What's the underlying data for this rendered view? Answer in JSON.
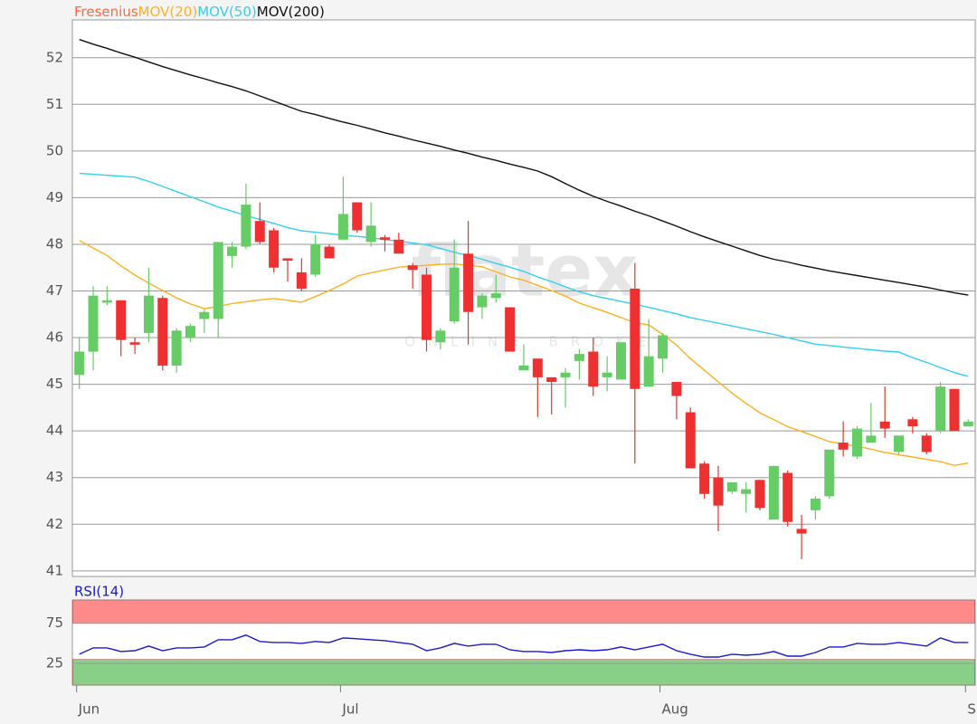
{
  "chart_data": [
    {
      "type": "candlestick",
      "watermark": "flatex",
      "watermark_sub": "ONLINE BROKER",
      "ylim": [
        40.88,
        52.81
      ],
      "yticks": [
        41,
        42,
        43,
        44,
        45,
        46,
        47,
        48,
        49,
        50,
        51,
        52
      ],
      "grid": true,
      "series": [
        {
          "name": "Fresenius",
          "type": "candlestick",
          "color": "#ff6a3d",
          "up_color": "#66cc66",
          "down_color": "#ee3030",
          "open": [
            45.2,
            45.7,
            46.75,
            46.8,
            45.9,
            46.1,
            46.85,
            45.4,
            46.0,
            46.4,
            46.4,
            47.75,
            47.95,
            48.5,
            48.3,
            47.7,
            47.4,
            47.35,
            47.95,
            48.1,
            48.9,
            48.05,
            48.15,
            48.1,
            47.55,
            47.35,
            45.9,
            46.35,
            47.8,
            46.65,
            46.85,
            46.65,
            45.3,
            45.55,
            45.15,
            45.15,
            45.5,
            45.7,
            45.15,
            45.1,
            47.05,
            44.95,
            45.55,
            45.05,
            44.4,
            43.3,
            43.0,
            42.7,
            42.65,
            42.95,
            42.1,
            43.1,
            41.9,
            42.3,
            42.6,
            43.75,
            43.45,
            43.75,
            44.2,
            43.55,
            44.25,
            43.9,
            44.0,
            44.9,
            44.1
          ],
          "high": [
            46.0,
            47.1,
            47.1,
            46.8,
            46.0,
            47.5,
            46.9,
            46.2,
            46.3,
            46.6,
            48.05,
            48.05,
            49.3,
            48.9,
            48.35,
            47.7,
            47.7,
            48.2,
            48.0,
            49.45,
            48.9,
            48.9,
            48.2,
            48.25,
            47.6,
            47.5,
            46.2,
            48.1,
            48.5,
            46.95,
            47.35,
            46.65,
            45.85,
            45.55,
            45.15,
            45.35,
            45.75,
            46.0,
            45.6,
            45.9,
            47.6,
            46.4,
            46.1,
            45.05,
            44.5,
            43.35,
            43.25,
            42.9,
            42.9,
            42.95,
            43.25,
            43.15,
            42.2,
            42.6,
            43.6,
            44.2,
            44.1,
            44.6,
            44.95,
            43.9,
            44.3,
            43.95,
            45.05,
            44.9,
            44.25
          ],
          "low": [
            44.9,
            45.3,
            46.7,
            45.6,
            45.65,
            45.9,
            45.3,
            45.25,
            45.9,
            46.1,
            46.0,
            47.5,
            47.9,
            48.0,
            47.4,
            47.2,
            47.0,
            47.3,
            47.7,
            48.1,
            48.25,
            47.95,
            47.85,
            47.8,
            47.05,
            45.7,
            45.75,
            46.3,
            45.85,
            46.4,
            46.75,
            45.7,
            45.3,
            44.3,
            44.35,
            44.5,
            45.1,
            44.75,
            44.85,
            45.1,
            43.3,
            44.95,
            45.25,
            44.25,
            43.2,
            42.55,
            41.85,
            42.65,
            42.25,
            42.3,
            42.1,
            41.95,
            41.25,
            42.1,
            42.55,
            43.45,
            43.4,
            43.75,
            43.85,
            43.5,
            43.95,
            43.5,
            43.95,
            44.0,
            44.1
          ],
          "close": [
            45.7,
            46.9,
            46.8,
            45.95,
            45.85,
            46.9,
            45.4,
            46.15,
            46.25,
            46.55,
            48.05,
            47.95,
            48.85,
            48.05,
            47.5,
            47.65,
            47.05,
            48.0,
            47.7,
            48.65,
            48.3,
            48.4,
            48.1,
            47.8,
            47.45,
            45.95,
            46.15,
            47.5,
            46.55,
            46.9,
            46.95,
            45.7,
            45.4,
            45.15,
            45.05,
            45.25,
            45.65,
            44.95,
            45.25,
            45.9,
            44.9,
            45.6,
            46.05,
            44.75,
            43.2,
            42.65,
            42.4,
            42.9,
            42.75,
            42.35,
            43.25,
            42.05,
            41.8,
            42.55,
            43.6,
            43.6,
            44.05,
            43.9,
            44.05,
            43.9,
            44.1,
            43.55,
            44.95,
            44.0,
            44.2
          ]
        },
        {
          "name": "MOV(20)",
          "type": "line",
          "color": "#ffb020",
          "values": [
            48.08,
            47.92,
            47.76,
            47.54,
            47.34,
            47.17,
            47.01,
            46.85,
            46.72,
            46.62,
            46.67,
            46.73,
            46.77,
            46.81,
            46.84,
            46.8,
            46.76,
            46.88,
            47.01,
            47.15,
            47.32,
            47.39,
            47.45,
            47.51,
            47.53,
            47.55,
            47.57,
            47.58,
            47.55,
            47.52,
            47.41,
            47.3,
            47.23,
            47.12,
            47.01,
            46.89,
            46.74,
            46.64,
            46.54,
            46.43,
            46.32,
            46.27,
            46.07,
            45.84,
            45.55,
            45.3,
            45.05,
            44.81,
            44.59,
            44.39,
            44.24,
            44.09,
            43.99,
            43.88,
            43.77,
            43.72,
            43.67,
            43.61,
            43.54,
            43.49,
            43.44,
            43.39,
            43.34,
            43.26,
            43.31
          ]
        },
        {
          "name": "MOV(50)",
          "type": "line",
          "color": "#33d0f0",
          "values": [
            49.52,
            49.5,
            49.48,
            49.46,
            49.44,
            49.35,
            49.24,
            49.13,
            49.02,
            48.91,
            48.8,
            48.71,
            48.62,
            48.53,
            48.45,
            48.36,
            48.29,
            48.26,
            48.23,
            48.19,
            48.17,
            48.14,
            48.1,
            48.07,
            48.03,
            47.99,
            47.91,
            47.83,
            47.76,
            47.68,
            47.59,
            47.51,
            47.42,
            47.3,
            47.2,
            47.09,
            46.98,
            46.9,
            46.84,
            46.78,
            46.71,
            46.65,
            46.58,
            46.51,
            46.43,
            46.37,
            46.31,
            46.25,
            46.19,
            46.13,
            46.07,
            46.0,
            45.93,
            45.86,
            45.83,
            45.8,
            45.77,
            45.74,
            45.71,
            45.69,
            45.57,
            45.47,
            45.36,
            45.25,
            45.17
          ]
        },
        {
          "name": "MOV(200)",
          "type": "line",
          "color": "#111111",
          "values": [
            52.39,
            52.29,
            52.2,
            52.1,
            52.01,
            51.91,
            51.81,
            51.72,
            51.63,
            51.55,
            51.46,
            51.38,
            51.29,
            51.18,
            51.07,
            50.96,
            50.85,
            50.78,
            50.7,
            50.62,
            50.55,
            50.47,
            50.39,
            50.32,
            50.24,
            50.17,
            50.1,
            50.02,
            49.95,
            49.87,
            49.8,
            49.72,
            49.65,
            49.57,
            49.45,
            49.3,
            49.16,
            49.03,
            48.92,
            48.82,
            48.71,
            48.61,
            48.5,
            48.39,
            48.27,
            48.16,
            48.06,
            47.96,
            47.86,
            47.76,
            47.68,
            47.62,
            47.55,
            47.49,
            47.43,
            47.38,
            47.33,
            47.28,
            47.23,
            47.18,
            47.13,
            47.08,
            47.02,
            46.96,
            46.91
          ]
        }
      ]
    },
    {
      "type": "line",
      "categories": [
        "Jun",
        null,
        null,
        null,
        null,
        null,
        null,
        null,
        null,
        null,
        null,
        null,
        null,
        null,
        null,
        null,
        null,
        null,
        null,
        "Jul",
        null,
        null,
        null,
        null,
        null,
        null,
        null,
        null,
        null,
        null,
        null,
        null,
        null,
        null,
        null,
        null,
        null,
        null,
        null,
        null,
        null,
        null,
        "Aug",
        null,
        null,
        null,
        null,
        null,
        null,
        null,
        null,
        null,
        null,
        null,
        null,
        null,
        null,
        null,
        null,
        null,
        null,
        null,
        null,
        null,
        "S"
      ],
      "ylim": [
        -2,
        104
      ],
      "yticks": [
        25,
        75
      ],
      "grid": true,
      "zones": [
        {
          "from": 75,
          "to": 104,
          "color": "#ff8a8a"
        },
        {
          "from": -2,
          "to": 30,
          "color": "#88d088"
        }
      ],
      "series": [
        {
          "name": "RSI(14)",
          "color": "#1a1acc",
          "values": [
            36.4,
            44.3,
            44.3,
            39.8,
            40.9,
            46.6,
            40.9,
            44.3,
            44.3,
            45.5,
            54.5,
            54.5,
            60.2,
            52.3,
            51.1,
            51.1,
            50.0,
            52.3,
            51.1,
            56.8,
            55.7,
            54.5,
            53.4,
            51.1,
            48.9,
            40.9,
            44.3,
            50.0,
            46.6,
            48.9,
            48.9,
            42.0,
            39.8,
            39.8,
            38.6,
            40.9,
            42.0,
            40.9,
            42.0,
            45.5,
            42.0,
            45.5,
            48.9,
            40.9,
            36.4,
            33.0,
            33.0,
            36.4,
            35.2,
            36.4,
            39.8,
            34.1,
            34.1,
            38.6,
            45.5,
            45.5,
            50.0,
            48.9,
            48.9,
            51.1,
            48.9,
            46.6,
            56.8,
            51.1,
            51.1
          ]
        }
      ]
    }
  ]
}
